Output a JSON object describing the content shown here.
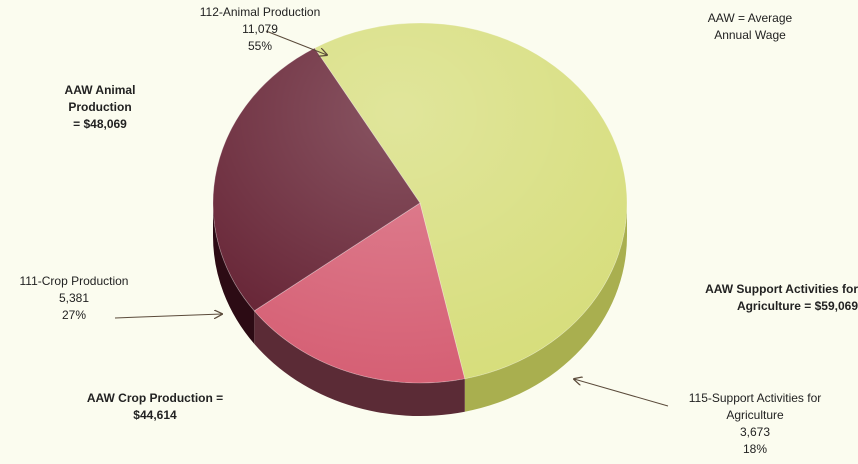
{
  "chart_data": {
    "type": "pie",
    "style": "3d",
    "series": [
      {
        "code": "112",
        "label": "112-Animal Production",
        "value": 11079,
        "value_label": "11,079",
        "percent_label": "55%",
        "color": "#d6dd7a",
        "side_color": "#a9af4f"
      },
      {
        "code": "115",
        "label": "115-Support Activities for Agriculture",
        "label_line1": "115-Support Activities for",
        "label_line2": "Agriculture",
        "value": 3673,
        "value_label": "3,673",
        "percent_label": "18%",
        "color": "#d55d72",
        "side_color": "#5b2b36"
      },
      {
        "code": "111",
        "label": "111-Crop Production",
        "value": 5381,
        "value_label": "5,381",
        "percent_label": "27%",
        "color": "#611c2e",
        "side_color": "#2c0b14"
      }
    ]
  },
  "legend_note": {
    "line1": "AAW = Average",
    "line2": "Annual Wage"
  },
  "wages": {
    "animal": {
      "line1": "AAW Animal",
      "line2": "Production",
      "line3": "= $48,069"
    },
    "support": {
      "line1": "AAW Support Activities for",
      "line2": "Agriculture = $59,069"
    },
    "crop": {
      "line1": "AAW Crop Production =",
      "line2": "$44,614"
    }
  },
  "colors": {
    "background": "#fbfcef",
    "arrow": "#5a4a3a"
  }
}
